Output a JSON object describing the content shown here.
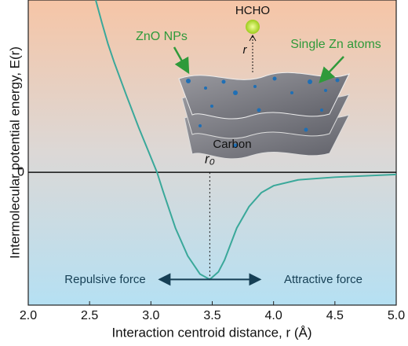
{
  "chart_data": {
    "type": "line",
    "x_label": "Interaction centroid distance, r (Å)",
    "y_label": "Intermolecular potential energy, E(r)",
    "x": [
      2.55,
      2.6,
      2.65,
      2.7,
      2.8,
      2.9,
      3.0,
      3.05,
      3.1,
      3.15,
      3.2,
      3.3,
      3.4,
      3.48,
      3.55,
      3.6,
      3.7,
      3.8,
      3.9,
      4.0,
      4.2,
      4.5,
      5.0
    ],
    "values": [
      1.61,
      1.4,
      1.2,
      1.03,
      0.72,
      0.42,
      0.14,
      0,
      -0.18,
      -0.35,
      -0.52,
      -0.78,
      -0.95,
      -1,
      -0.93,
      -0.82,
      -0.52,
      -0.32,
      -0.19,
      -0.125,
      -0.07,
      -0.045,
      -0.02
    ],
    "color": "#3aa89a",
    "xlim": [
      2.0,
      5.0
    ],
    "ylim": [
      -1.24,
      1.61
    ],
    "xticks": [
      {
        "value": 2,
        "label": "2.0"
      },
      {
        "value": 2.5,
        "label": "2.5"
      },
      {
        "value": 3,
        "label": "3.0"
      },
      {
        "value": 3.5,
        "label": "3.5"
      },
      {
        "value": 4,
        "label": "4.0"
      },
      {
        "value": 4.5,
        "label": "4.5"
      },
      {
        "value": 5,
        "label": "5.0"
      }
    ],
    "yticks": [
      0
    ],
    "annotations": {
      "r0": "r₀",
      "repulsive": "Repulsive force",
      "attractive": "Attractive force",
      "hcho": "HCHO",
      "r": "r",
      "zno": "ZnO NPs",
      "single_zn": "Single Zn atoms",
      "carbon": "Carbon"
    }
  }
}
